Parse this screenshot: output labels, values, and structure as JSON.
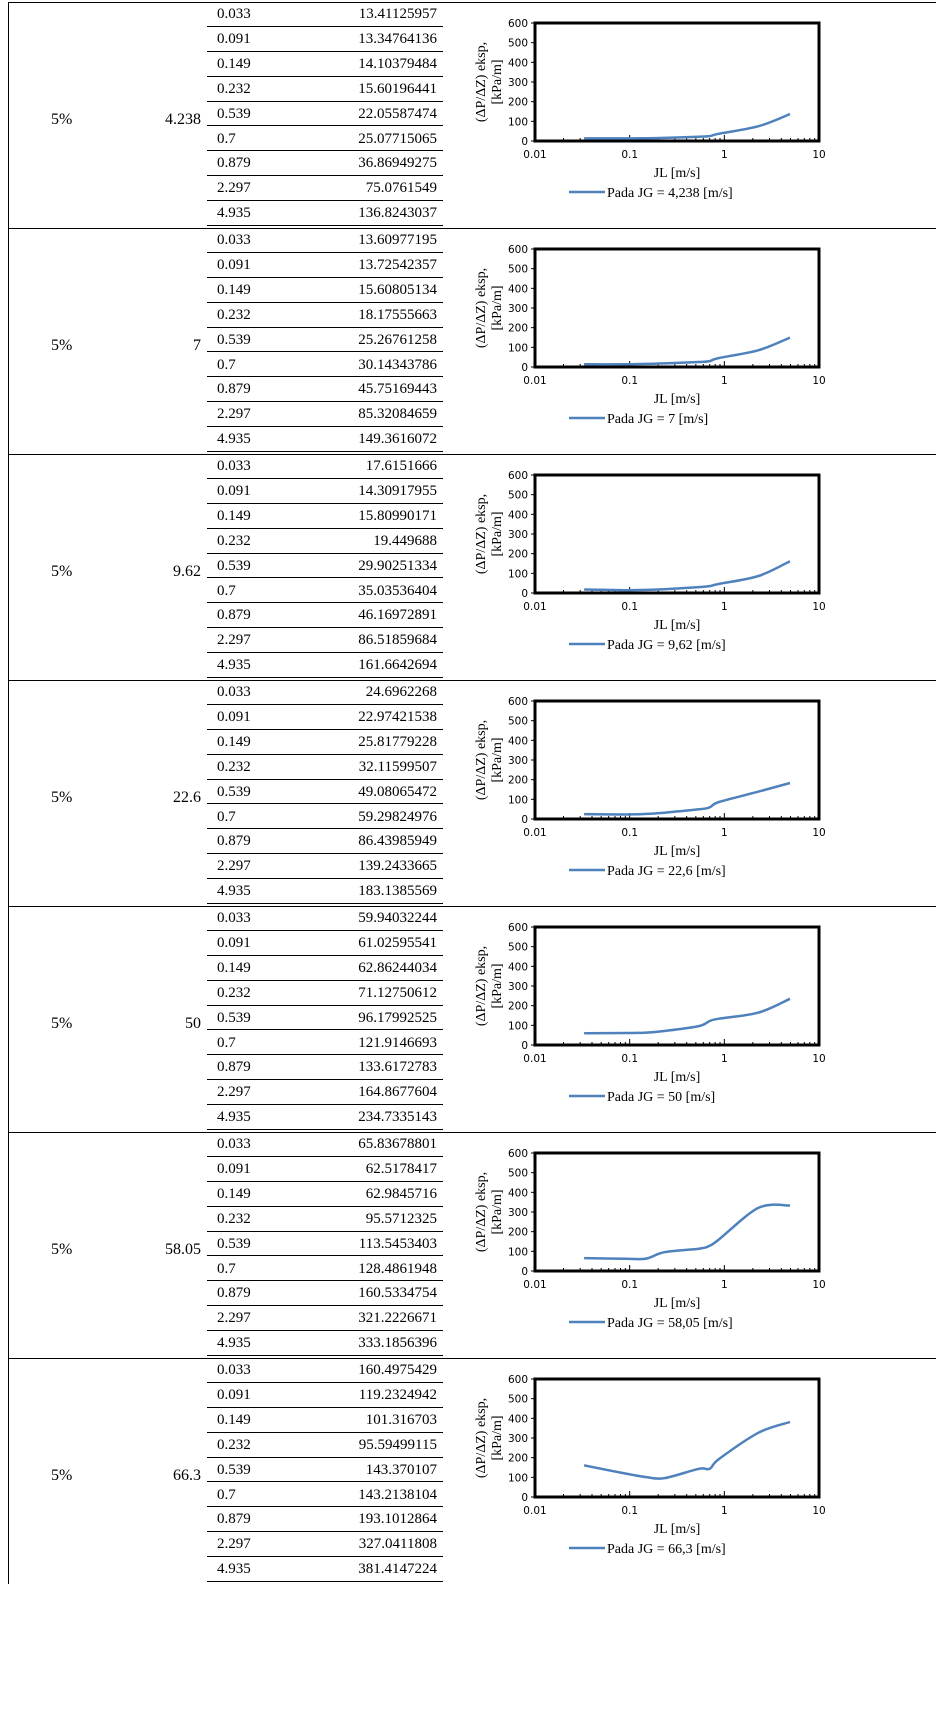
{
  "concentration": "5%",
  "jl_values": [
    "0.033",
    "0.091",
    "0.149",
    "0.232",
    "0.539",
    "0.7",
    "0.879",
    "2.297",
    "4.935"
  ],
  "chart_axis": {
    "ylabel_line1": "(ΔP/ΔZ) eksp,",
    "ylabel_line2": "[kPa/m]",
    "xlabel": "JL [m/s]",
    "yticks": [
      "0",
      "100",
      "200",
      "300",
      "400",
      "500",
      "600"
    ],
    "xticks": [
      "0.01",
      "0.1",
      "1",
      "10"
    ]
  },
  "chart_data": [
    {
      "type": "line",
      "jg": "4.238",
      "legend": "Pada JG = 4,238 [m/s]",
      "x_scale": "log",
      "xlim": [
        0.01,
        10
      ],
      "ylim": [
        0,
        600
      ],
      "x": [
        0.033,
        0.091,
        0.149,
        0.232,
        0.539,
        0.7,
        0.879,
        2.297,
        4.935
      ],
      "values": [
        "13.41125957",
        "13.34764136",
        "14.10379484",
        "15.60196441",
        "22.05587474",
        "25.07715065",
        "36.86949275",
        "75.0761549",
        "136.8243037"
      ]
    },
    {
      "type": "line",
      "jg": "7",
      "legend": "Pada JG = 7 [m/s]",
      "x_scale": "log",
      "xlim": [
        0.01,
        10
      ],
      "ylim": [
        0,
        600
      ],
      "x": [
        0.033,
        0.091,
        0.149,
        0.232,
        0.539,
        0.7,
        0.879,
        2.297,
        4.935
      ],
      "values": [
        "13.60977195",
        "13.72542357",
        "15.60805134",
        "18.17555663",
        "25.26761258",
        "30.14343786",
        "45.75169443",
        "85.32084659",
        "149.3616072"
      ]
    },
    {
      "type": "line",
      "jg": "9.62",
      "legend": "Pada JG = 9,62 [m/s]",
      "x_scale": "log",
      "xlim": [
        0.01,
        10
      ],
      "ylim": [
        0,
        600
      ],
      "x": [
        0.033,
        0.091,
        0.149,
        0.232,
        0.539,
        0.7,
        0.879,
        2.297,
        4.935
      ],
      "values": [
        "17.6151666",
        "14.30917955",
        "15.80990171",
        "19.449688",
        "29.90251334",
        "35.03536404",
        "46.16972891",
        "86.51859684",
        "161.6642694"
      ]
    },
    {
      "type": "line",
      "jg": "22.6",
      "legend": "Pada JG = 22,6 [m/s]",
      "x_scale": "log",
      "xlim": [
        0.01,
        10
      ],
      "ylim": [
        0,
        600
      ],
      "x": [
        0.033,
        0.091,
        0.149,
        0.232,
        0.539,
        0.7,
        0.879,
        2.297,
        4.935
      ],
      "values": [
        "24.6962268",
        "22.97421538",
        "25.81779228",
        "32.11599507",
        "49.08065472",
        "59.29824976",
        "86.43985949",
        "139.2433665",
        "183.1385569"
      ]
    },
    {
      "type": "line",
      "jg": "50",
      "legend": "Pada JG = 50 [m/s]",
      "x_scale": "log",
      "xlim": [
        0.01,
        10
      ],
      "ylim": [
        0,
        600
      ],
      "x": [
        0.033,
        0.091,
        0.149,
        0.232,
        0.539,
        0.7,
        0.879,
        2.297,
        4.935
      ],
      "values": [
        "59.94032244",
        "61.02595541",
        "62.86244034",
        "71.12750612",
        "96.17992525",
        "121.9146693",
        "133.6172783",
        "164.8677604",
        "234.7335143"
      ]
    },
    {
      "type": "line",
      "jg": "58.05",
      "legend": "Pada JG = 58,05 [m/s]",
      "x_scale": "log",
      "xlim": [
        0.01,
        10
      ],
      "ylim": [
        0,
        600
      ],
      "x": [
        0.033,
        0.091,
        0.149,
        0.232,
        0.539,
        0.7,
        0.879,
        2.297,
        4.935
      ],
      "values": [
        "65.83678801",
        "62.5178417",
        "62.9845716",
        "95.5712325",
        "113.5453403",
        "128.4861948",
        "160.5334754",
        "321.2226671",
        "333.1856396"
      ]
    },
    {
      "type": "line",
      "jg": "66.3",
      "legend": "Pada JG = 66,3 [m/s]",
      "x_scale": "log",
      "xlim": [
        0.01,
        10
      ],
      "ylim": [
        0,
        600
      ],
      "x": [
        0.033,
        0.091,
        0.149,
        0.232,
        0.539,
        0.7,
        0.879,
        2.297,
        4.935
      ],
      "values": [
        "160.4975429",
        "119.2324942",
        "101.316703",
        "95.59499115",
        "143.370107",
        "143.2138104",
        "193.1012864",
        "327.0411808",
        "381.4147224"
      ]
    }
  ],
  "colors": {
    "line": "#4f81bd",
    "axis": "#000000"
  }
}
